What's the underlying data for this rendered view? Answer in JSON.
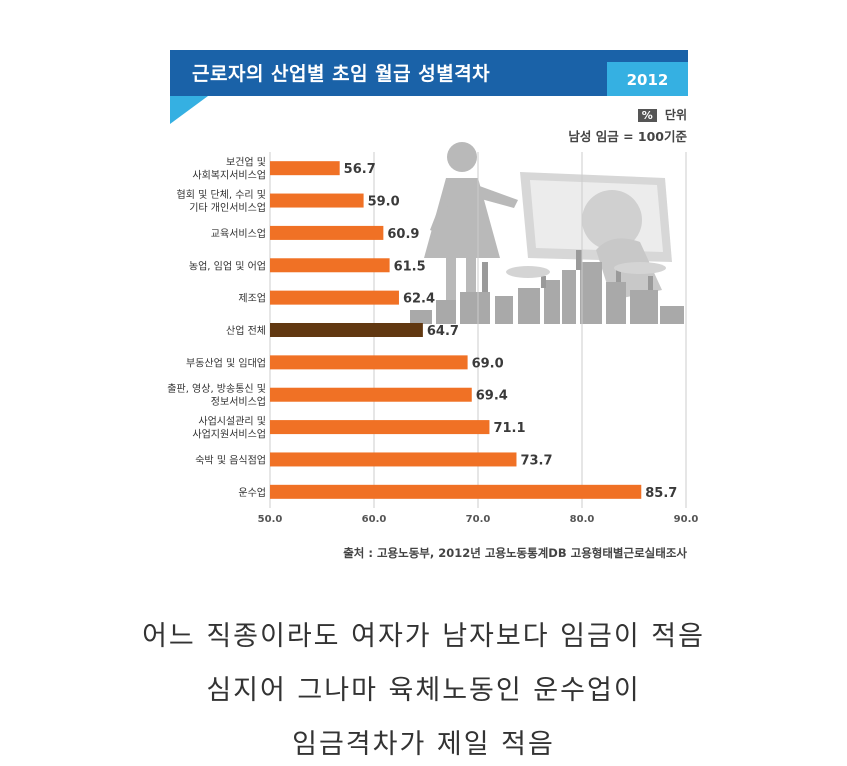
{
  "header": {
    "title": "근로자의 산업별 초임 월급 성별격차",
    "year": "2012"
  },
  "unit": {
    "badge": "%",
    "label": "단위",
    "base": "남성 임금 = 100기준"
  },
  "source": "출처 : 고용노동부, 2012년 고용노동통계DB 고용형태별근로실태조사",
  "caption": [
    "어느 직종이라도 여자가 남자보다 임금이 적음",
    "심지어 그나마 육체노동인 운수업이",
    "임금격차가 제일 적음"
  ],
  "chart_data": {
    "type": "bar",
    "orientation": "horizontal",
    "categories": [
      [
        "보건업 및",
        "사회복지서비스업"
      ],
      [
        "협회 및 단체, 수리 및",
        "기타 개인서비스업"
      ],
      [
        "교육서비스업"
      ],
      [
        "농업, 임업 및 어업"
      ],
      [
        "제조업"
      ],
      [
        "산업 전체"
      ],
      [
        "부동산업 및 임대업"
      ],
      [
        "출판, 영상, 방송통신 및",
        "정보서비스업"
      ],
      [
        "사업시설관리 및",
        "사업지원서비스업"
      ],
      [
        "숙박 및 음식점업"
      ],
      [
        "운수업"
      ]
    ],
    "values": [
      56.7,
      59.0,
      60.9,
      61.5,
      62.4,
      64.7,
      69.0,
      69.4,
      71.1,
      73.7,
      85.7
    ],
    "value_labels": [
      "56.7",
      "59.0",
      "60.9",
      "61.5",
      "62.4",
      "64.7",
      "69.0",
      "69.4",
      "71.1",
      "73.7",
      "85.7"
    ],
    "highlight_index": 5,
    "xlim": [
      50,
      90
    ],
    "xticks": [
      50,
      60,
      70,
      80,
      90
    ],
    "xtick_labels": [
      "50.0",
      "60.0",
      "70.0",
      "80.0",
      "90.0"
    ],
    "grid": true,
    "colors": {
      "bar": "#f07125",
      "highlight": "#613811",
      "grid": "#cccccc",
      "illustration": "#b9b9b9"
    }
  },
  "illustration": {
    "icons": [
      "woman-figure-icon",
      "money-bill-icon",
      "factory-skyline-icon"
    ]
  }
}
